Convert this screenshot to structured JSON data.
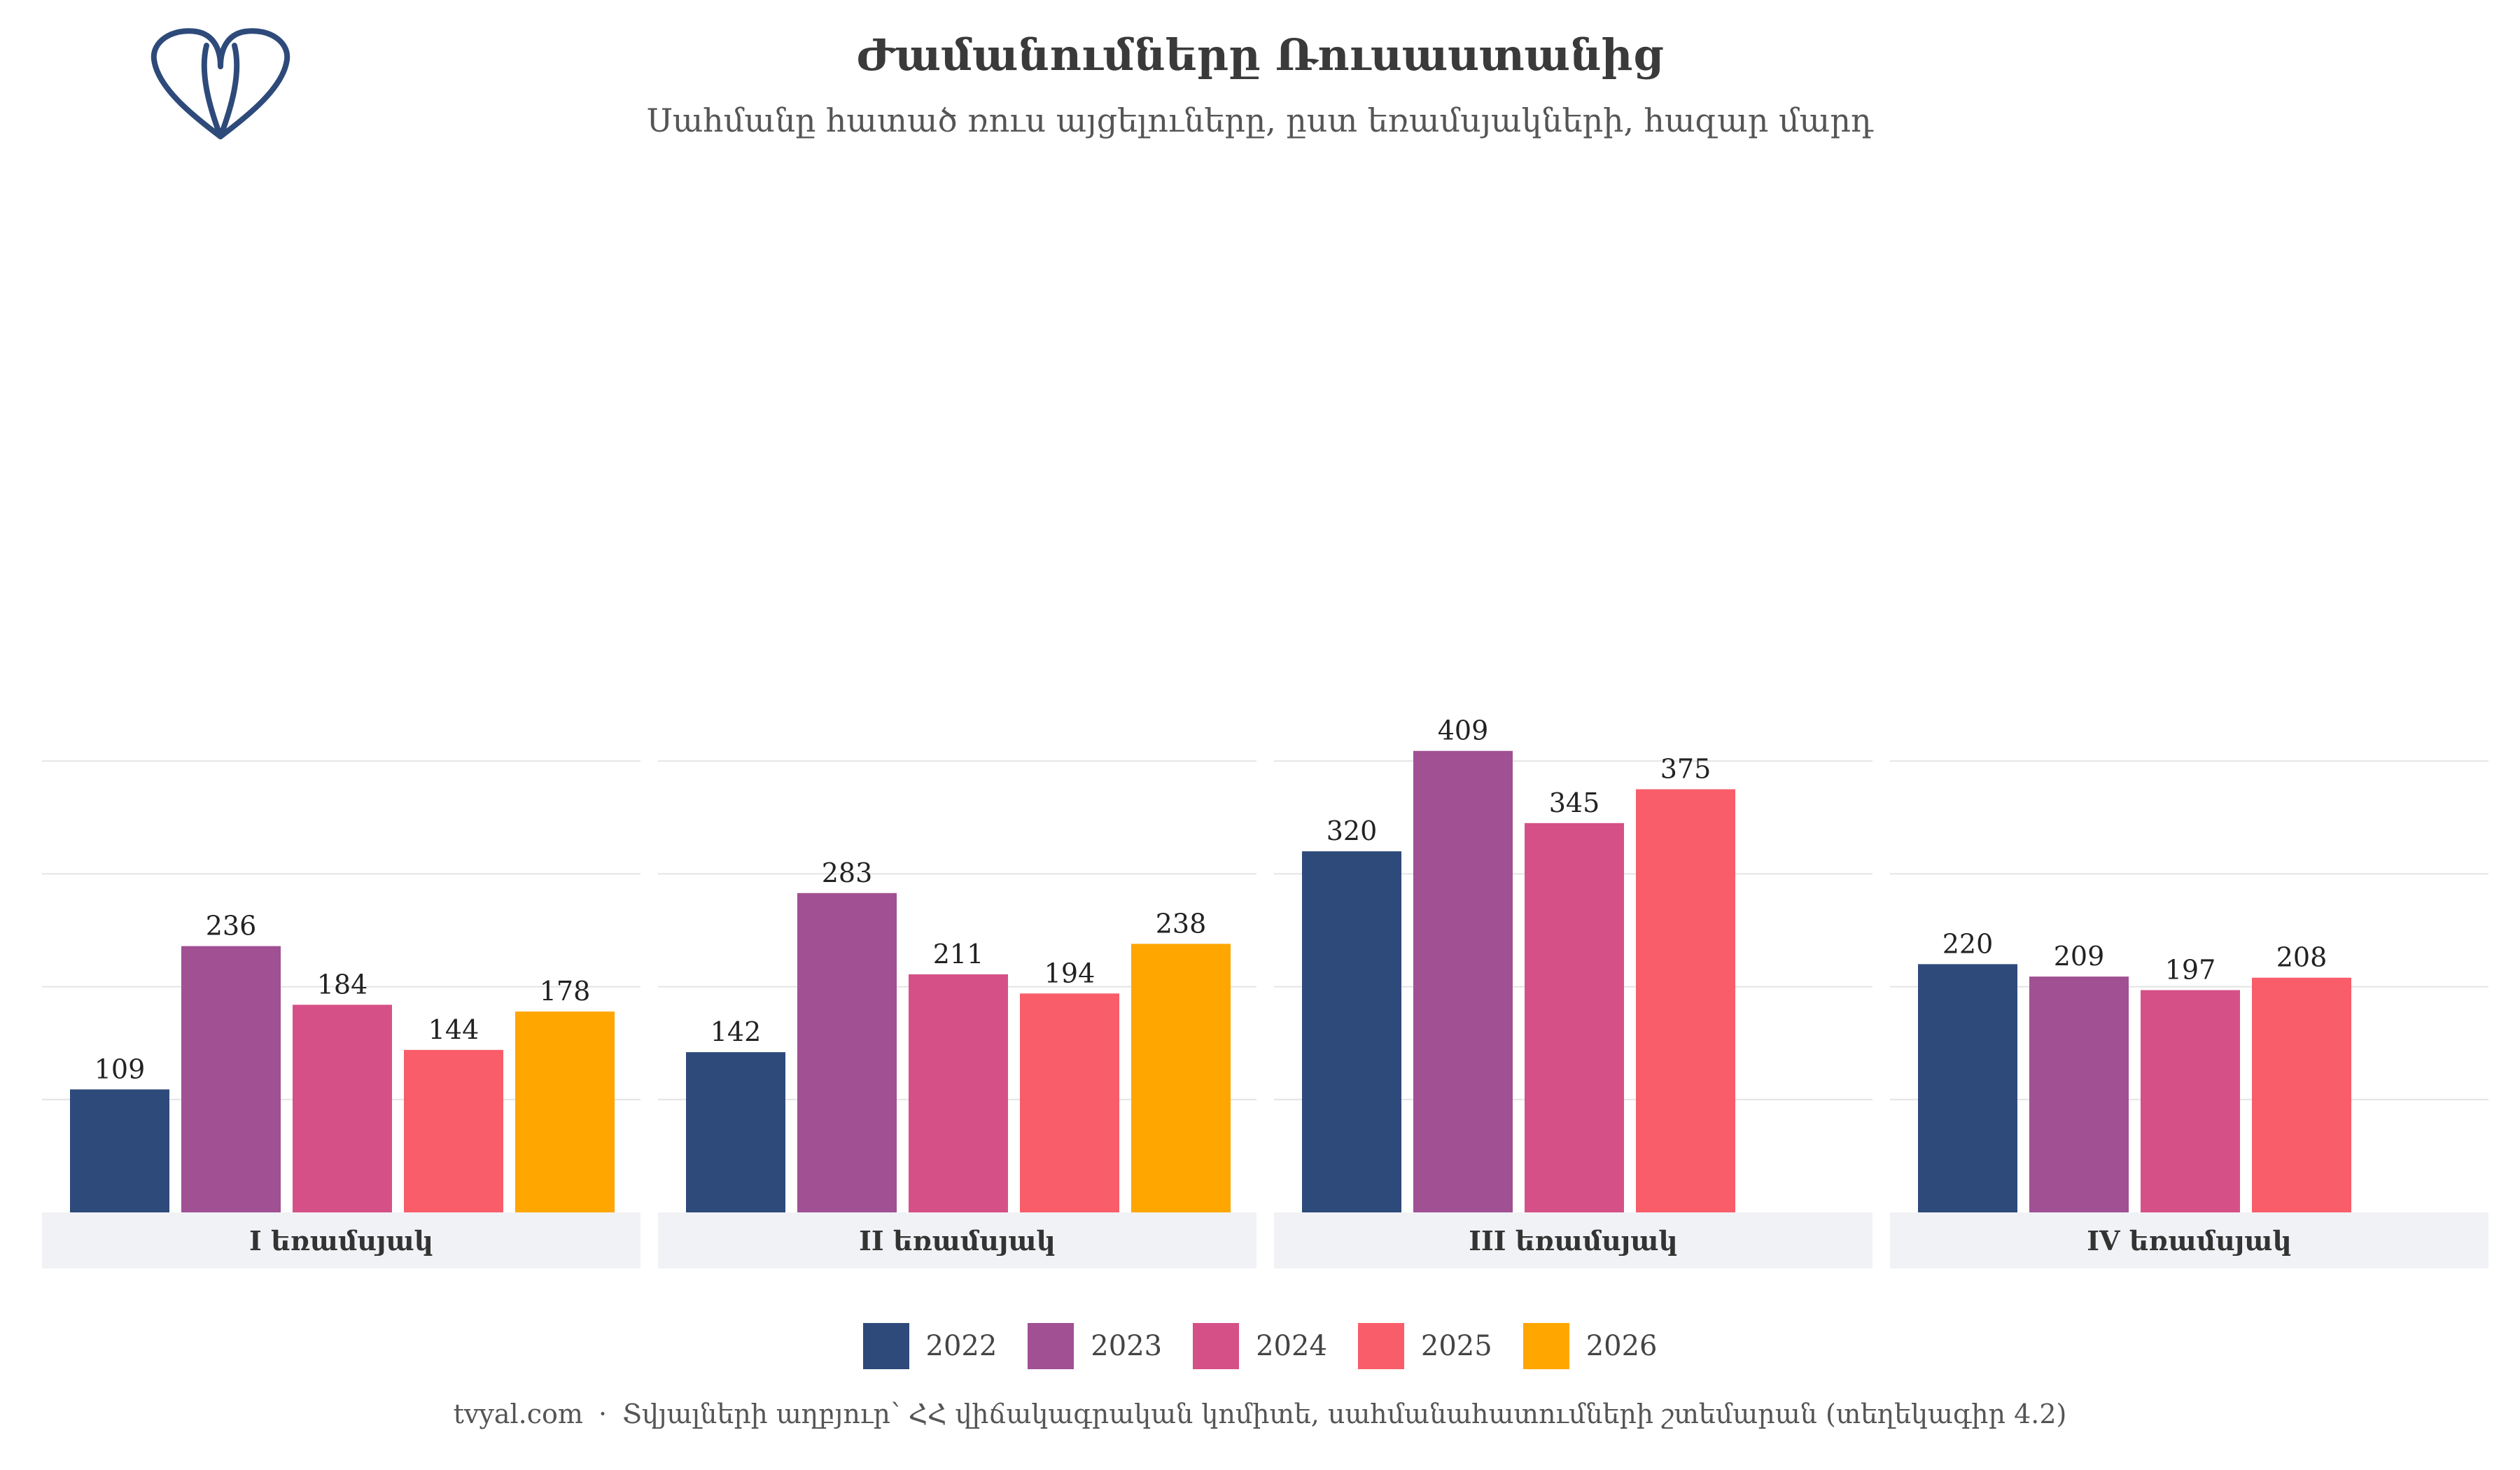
{
  "title": "Ժամանումները Ռուսաստանից",
  "subtitle": "Սահմանը հատած ռուս այցելուները, ըստ եռամսյակների, հազար մարդ",
  "logo_icon": "tvyal-logo-icon",
  "footer": {
    "site": "tvyal.com",
    "separator": "·",
    "source": "Տվյալների աղբյուր՝ ՀՀ վիճակագրական կոմիտե, սահմանահատումների շտեմարան (տեղեկագիր 4.2)"
  },
  "chart_data": {
    "type": "bar",
    "facets": [
      "I եռամսյակ",
      "II եռամսյակ",
      "III եռամսյակ",
      "IV եռամսյակ"
    ],
    "ylim": [
      0,
      425
    ],
    "grid": true,
    "legend_position": "bottom",
    "series": [
      {
        "name": "2022",
        "color": "#2e4a7a",
        "values": [
          109,
          142,
          320,
          220
        ]
      },
      {
        "name": "2023",
        "color": "#a05093",
        "values": [
          236,
          283,
          409,
          209
        ]
      },
      {
        "name": "2024",
        "color": "#d65088",
        "values": [
          184,
          211,
          345,
          197
        ]
      },
      {
        "name": "2025",
        "color": "#f95d6a",
        "values": [
          144,
          194,
          375,
          208
        ]
      },
      {
        "name": "2026",
        "color": "#ffa600",
        "values": [
          178,
          238,
          null,
          null
        ]
      }
    ]
  }
}
